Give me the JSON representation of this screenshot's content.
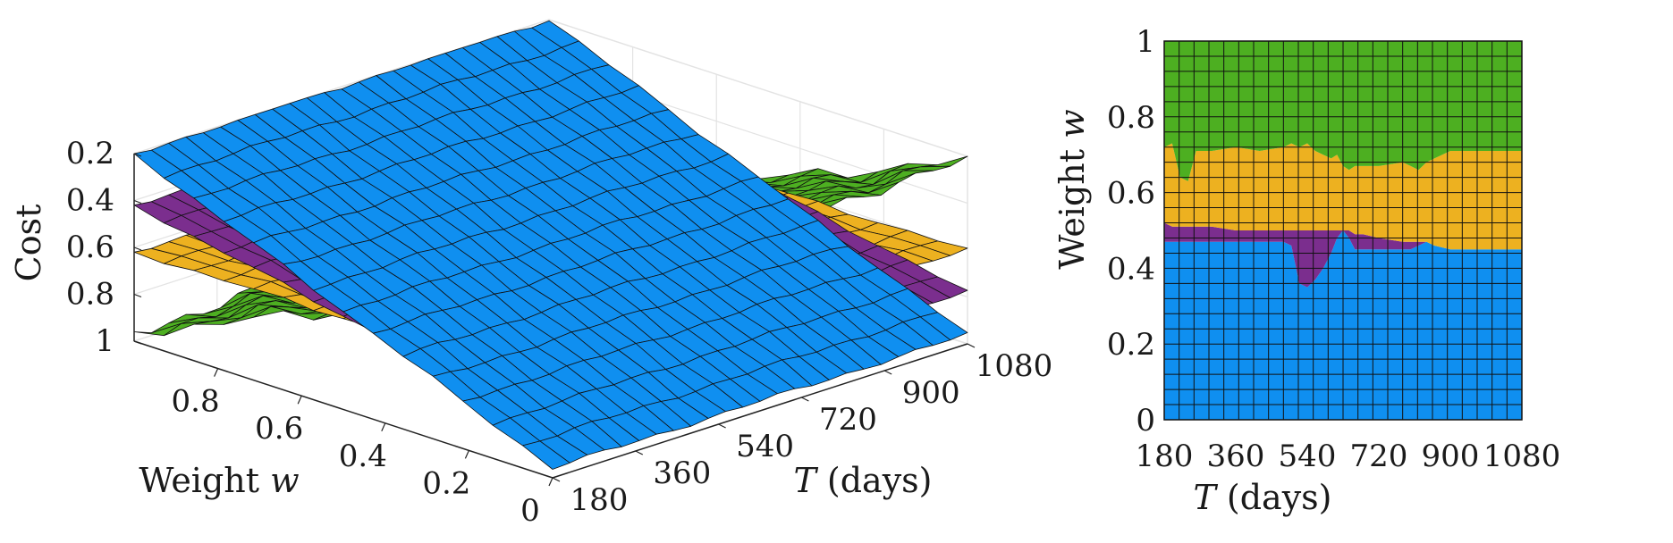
{
  "colors": {
    "blue": "#0f8ff0",
    "purple": "#7b2e8e",
    "orange": "#edb120",
    "green": "#4daf21",
    "grid": "#e3e3e3",
    "axis": "#222222",
    "mesh": "#111111"
  },
  "chart_data": [
    {
      "type": "surface",
      "zlabel": "Cost",
      "ylabel_text": "Weight ",
      "ylabel_var": "w",
      "xlabel_var": "T",
      "xlabel_text": " (days)",
      "x_ticks": [
        "180",
        "360",
        "540",
        "720",
        "900",
        "1080"
      ],
      "y_ticks": [
        "0",
        "0.2",
        "0.4",
        "0.6",
        "0.8"
      ],
      "z_ticks": [
        "0.2",
        "0.4",
        "0.6",
        "0.8",
        "1"
      ],
      "xlim": [
        180,
        1080
      ],
      "ylim": [
        0,
        1
      ],
      "zlim": [
        0.2,
        1
      ],
      "z_reversed": true,
      "grid": true,
      "surfaces": [
        {
          "color_key": "blue",
          "cost_at_w0_T180": 0.96,
          "cost_at_w1_T180": 0.2,
          "cost_at_w0_T1080": 0.96,
          "cost_at_w1_T1080": 0.2
        },
        {
          "color_key": "purple",
          "cost_at_w0_T180": 0.78,
          "cost_at_w1_T180": 0.42,
          "cost_at_w0_T1080": 0.78,
          "cost_at_w1_T1080": 0.42
        },
        {
          "color_key": "orange",
          "cost_at_w0_T180": 0.6,
          "cost_at_w1_T180": 0.62,
          "cost_at_w0_T1080": 0.6,
          "cost_at_w1_T1080": 0.62
        },
        {
          "color_key": "green",
          "cost_at_w0_T180": 0.2,
          "cost_at_w1_T180": 0.96,
          "cost_at_w0_T1080": 0.22,
          "cost_at_w1_T1080": 0.96
        }
      ]
    },
    {
      "type": "area",
      "ylabel_text": "Weight ",
      "ylabel_var": "w",
      "xlabel_var": "T",
      "xlabel_text": " (days)",
      "x_ticks": [
        "180",
        "360",
        "540",
        "720",
        "900",
        "1080"
      ],
      "y_ticks": [
        "0",
        "0.2",
        "0.4",
        "0.6",
        "0.8",
        "1"
      ],
      "xlim": [
        180,
        1080
      ],
      "ylim": [
        0,
        1
      ],
      "grid": true,
      "x": [
        180,
        200,
        220,
        240,
        260,
        300,
        360,
        420,
        480,
        500,
        520,
        540,
        560,
        580,
        600,
        615,
        630,
        645,
        660,
        680,
        720,
        780,
        800,
        820,
        840,
        860,
        900,
        960,
        1020,
        1080
      ],
      "boundaries": [
        {
          "name": "blue_top",
          "color_key": "blue",
          "values": [
            0.47,
            0.47,
            0.47,
            0.47,
            0.47,
            0.47,
            0.47,
            0.47,
            0.47,
            0.46,
            0.36,
            0.35,
            0.37,
            0.4,
            0.44,
            0.48,
            0.5,
            0.48,
            0.45,
            0.45,
            0.45,
            0.45,
            0.45,
            0.46,
            0.47,
            0.46,
            0.45,
            0.45,
            0.45,
            0.45
          ]
        },
        {
          "name": "purple_top",
          "color_key": "purple",
          "values": [
            0.52,
            0.51,
            0.51,
            0.51,
            0.51,
            0.51,
            0.5,
            0.5,
            0.5,
            0.5,
            0.5,
            0.5,
            0.5,
            0.5,
            0.5,
            0.5,
            0.5,
            0.5,
            0.49,
            0.49,
            0.48,
            0.47,
            0.47,
            0.47,
            0.47,
            0.46,
            0.45,
            0.45,
            0.45,
            0.45
          ]
        },
        {
          "name": "orange_top",
          "color_key": "orange",
          "values": [
            0.72,
            0.73,
            0.64,
            0.63,
            0.71,
            0.71,
            0.72,
            0.71,
            0.72,
            0.73,
            0.72,
            0.73,
            0.71,
            0.7,
            0.69,
            0.7,
            0.67,
            0.66,
            0.67,
            0.67,
            0.67,
            0.68,
            0.67,
            0.66,
            0.68,
            0.69,
            0.71,
            0.71,
            0.71,
            0.71
          ]
        },
        {
          "name": "green_top",
          "color_key": "green",
          "values": [
            1,
            1,
            1,
            1,
            1,
            1,
            1,
            1,
            1,
            1,
            1,
            1,
            1,
            1,
            1,
            1,
            1,
            1,
            1,
            1,
            1,
            1,
            1,
            1,
            1,
            1,
            1,
            1,
            1,
            1
          ]
        }
      ]
    }
  ]
}
